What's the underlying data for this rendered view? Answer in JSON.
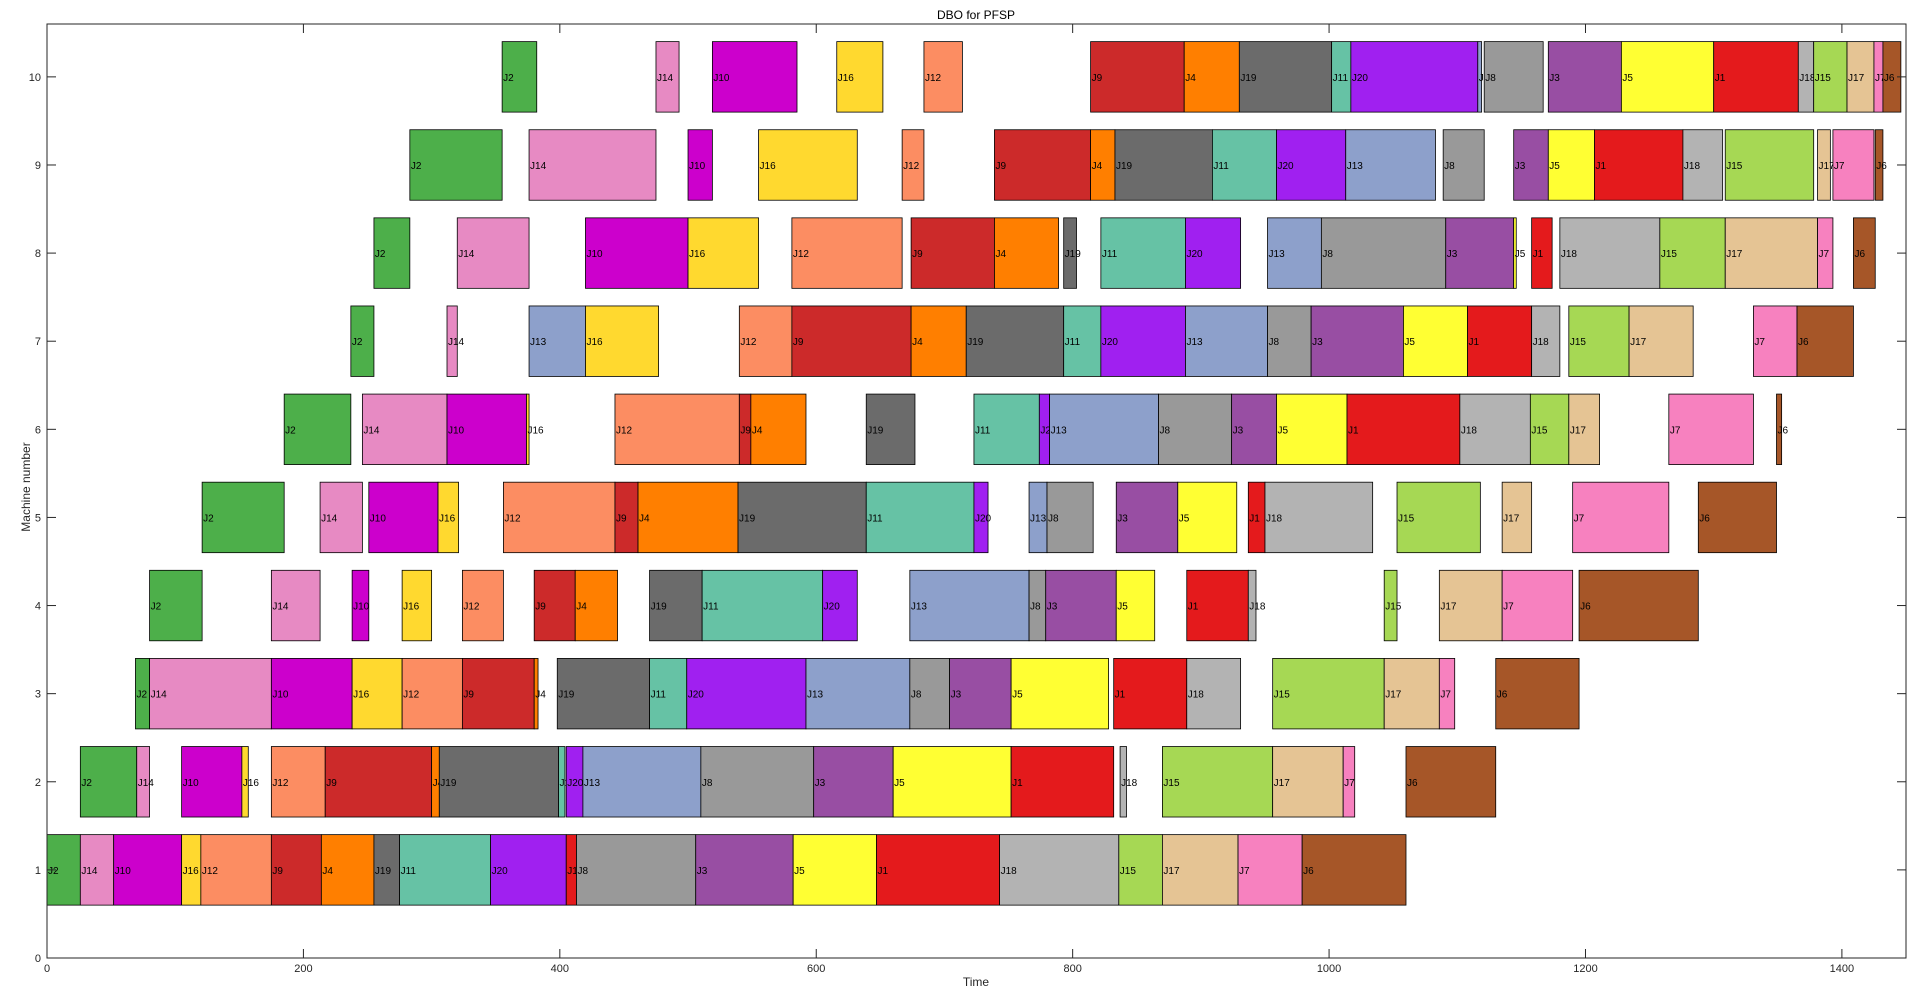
{
  "chart_data": {
    "type": "gantt",
    "title": "DBO for PFSP",
    "xlabel": "Time",
    "ylabel": "Machine number",
    "xlim": [
      0,
      1450
    ],
    "ylim": [
      0,
      10.6
    ],
    "x_ticks": [
      0,
      200,
      400,
      600,
      800,
      1000,
      1200,
      1400
    ],
    "y_ticks": [
      0,
      1,
      2,
      3,
      4,
      5,
      6,
      7,
      8,
      9,
      10
    ],
    "grid": false,
    "job_colors": {
      "J1": "#e41a1c",
      "J2": "#4daf4a",
      "J3": "#984ea3",
      "J4": "#ff7f00",
      "J5": "#ffff33",
      "J6": "#a65628",
      "J7": "#f781bf",
      "J8": "#999999",
      "J9": "#cc2a2a",
      "J10": "#cc00cc",
      "J11": "#66c2a5",
      "J12": "#fc8d62",
      "J13": "#8da0cb",
      "J14": "#e78ac3",
      "J15": "#a6d854",
      "J16": "#ffd92f",
      "J17": "#e5c494",
      "J18": "#b3b3b3",
      "J19": "#6b6b6b",
      "J20": "#a020f0"
    },
    "operations": [
      {
        "m": 1,
        "job": "J2",
        "s": 0,
        "e": 26
      },
      {
        "m": 1,
        "job": "J14",
        "s": 26,
        "e": 52
      },
      {
        "m": 1,
        "job": "J10",
        "s": 52,
        "e": 105
      },
      {
        "m": 1,
        "job": "J16",
        "s": 105,
        "e": 120
      },
      {
        "m": 1,
        "job": "J12",
        "s": 120,
        "e": 175
      },
      {
        "m": 1,
        "job": "J9",
        "s": 175,
        "e": 214
      },
      {
        "m": 1,
        "job": "J4",
        "s": 214,
        "e": 255
      },
      {
        "m": 1,
        "job": "J19",
        "s": 255,
        "e": 275
      },
      {
        "m": 1,
        "job": "J11",
        "s": 275,
        "e": 346
      },
      {
        "m": 1,
        "job": "J20",
        "s": 346,
        "e": 405
      },
      {
        "m": 1,
        "job": "J1",
        "s": 405,
        "e": 413
      },
      {
        "m": 1,
        "job": "J8",
        "s": 413,
        "e": 506
      },
      {
        "m": 1,
        "job": "J3",
        "s": 506,
        "e": 582
      },
      {
        "m": 1,
        "job": "J5",
        "s": 582,
        "e": 647
      },
      {
        "m": 1,
        "job": "J1",
        "s": 647,
        "e": 743
      },
      {
        "m": 1,
        "job": "J18",
        "s": 743,
        "e": 836
      },
      {
        "m": 1,
        "job": "J15",
        "s": 836,
        "e": 870
      },
      {
        "m": 1,
        "job": "J17",
        "s": 870,
        "e": 929
      },
      {
        "m": 1,
        "job": "J7",
        "s": 929,
        "e": 979
      },
      {
        "m": 1,
        "job": "J6",
        "s": 979,
        "e": 1060
      },
      {
        "m": 2,
        "job": "J2",
        "s": 26,
        "e": 70
      },
      {
        "m": 2,
        "job": "J14",
        "s": 70,
        "e": 80
      },
      {
        "m": 2,
        "job": "J10",
        "s": 105,
        "e": 152
      },
      {
        "m": 2,
        "job": "J16",
        "s": 152,
        "e": 157
      },
      {
        "m": 2,
        "job": "J12",
        "s": 175,
        "e": 217
      },
      {
        "m": 2,
        "job": "J9",
        "s": 217,
        "e": 300
      },
      {
        "m": 2,
        "job": "J4",
        "s": 300,
        "e": 306
      },
      {
        "m": 2,
        "job": "J19",
        "s": 306,
        "e": 399
      },
      {
        "m": 2,
        "job": "J11",
        "s": 399,
        "e": 404
      },
      {
        "m": 2,
        "job": "J20",
        "s": 405,
        "e": 418
      },
      {
        "m": 2,
        "job": "J13",
        "s": 418,
        "e": 510
      },
      {
        "m": 2,
        "job": "J8",
        "s": 510,
        "e": 598
      },
      {
        "m": 2,
        "job": "J3",
        "s": 598,
        "e": 660
      },
      {
        "m": 2,
        "job": "J5",
        "s": 660,
        "e": 752
      },
      {
        "m": 2,
        "job": "J1",
        "s": 752,
        "e": 832
      },
      {
        "m": 2,
        "job": "J18",
        "s": 837,
        "e": 842
      },
      {
        "m": 2,
        "job": "J15",
        "s": 870,
        "e": 956
      },
      {
        "m": 2,
        "job": "J17",
        "s": 956,
        "e": 1011
      },
      {
        "m": 2,
        "job": "J7",
        "s": 1011,
        "e": 1020
      },
      {
        "m": 2,
        "job": "J6",
        "s": 1060,
        "e": 1130
      },
      {
        "m": 3,
        "job": "J2",
        "s": 69,
        "e": 80
      },
      {
        "m": 3,
        "job": "J14",
        "s": 80,
        "e": 175
      },
      {
        "m": 3,
        "job": "J10",
        "s": 175,
        "e": 238
      },
      {
        "m": 3,
        "job": "J16",
        "s": 238,
        "e": 277
      },
      {
        "m": 3,
        "job": "J12",
        "s": 277,
        "e": 324
      },
      {
        "m": 3,
        "job": "J9",
        "s": 324,
        "e": 380
      },
      {
        "m": 3,
        "job": "J4",
        "s": 380,
        "e": 383
      },
      {
        "m": 3,
        "job": "J19",
        "s": 398,
        "e": 470
      },
      {
        "m": 3,
        "job": "J11",
        "s": 470,
        "e": 499
      },
      {
        "m": 3,
        "job": "J20",
        "s": 499,
        "e": 592
      },
      {
        "m": 3,
        "job": "J13",
        "s": 592,
        "e": 673
      },
      {
        "m": 3,
        "job": "J8",
        "s": 673,
        "e": 704
      },
      {
        "m": 3,
        "job": "J3",
        "s": 704,
        "e": 752
      },
      {
        "m": 3,
        "job": "J5",
        "s": 752,
        "e": 828
      },
      {
        "m": 3,
        "job": "J1",
        "s": 832,
        "e": 889
      },
      {
        "m": 3,
        "job": "J18",
        "s": 889,
        "e": 931
      },
      {
        "m": 3,
        "job": "J15",
        "s": 956,
        "e": 1043
      },
      {
        "m": 3,
        "job": "J17",
        "s": 1043,
        "e": 1086
      },
      {
        "m": 3,
        "job": "J7",
        "s": 1086,
        "e": 1098
      },
      {
        "m": 3,
        "job": "J6",
        "s": 1130,
        "e": 1195
      },
      {
        "m": 4,
        "job": "J2",
        "s": 80,
        "e": 121
      },
      {
        "m": 4,
        "job": "J14",
        "s": 175,
        "e": 213
      },
      {
        "m": 4,
        "job": "J10",
        "s": 238,
        "e": 251
      },
      {
        "m": 4,
        "job": "J16",
        "s": 277,
        "e": 300
      },
      {
        "m": 4,
        "job": "J12",
        "s": 324,
        "e": 356
      },
      {
        "m": 4,
        "job": "J9",
        "s": 380,
        "e": 412
      },
      {
        "m": 4,
        "job": "J4",
        "s": 412,
        "e": 445
      },
      {
        "m": 4,
        "job": "J19",
        "s": 470,
        "e": 511
      },
      {
        "m": 4,
        "job": "J11",
        "s": 511,
        "e": 605
      },
      {
        "m": 4,
        "job": "J20",
        "s": 605,
        "e": 632
      },
      {
        "m": 4,
        "job": "J13",
        "s": 673,
        "e": 766
      },
      {
        "m": 4,
        "job": "J8",
        "s": 766,
        "e": 779
      },
      {
        "m": 4,
        "job": "J3",
        "s": 779,
        "e": 834
      },
      {
        "m": 4,
        "job": "J5",
        "s": 834,
        "e": 864
      },
      {
        "m": 4,
        "job": "J1",
        "s": 889,
        "e": 937
      },
      {
        "m": 4,
        "job": "J18",
        "s": 937,
        "e": 943
      },
      {
        "m": 4,
        "job": "J15",
        "s": 1043,
        "e": 1053
      },
      {
        "m": 4,
        "job": "J17",
        "s": 1086,
        "e": 1135
      },
      {
        "m": 4,
        "job": "J7",
        "s": 1135,
        "e": 1190
      },
      {
        "m": 4,
        "job": "J6",
        "s": 1195,
        "e": 1288
      },
      {
        "m": 5,
        "job": "J2",
        "s": 121,
        "e": 185
      },
      {
        "m": 5,
        "job": "J14",
        "s": 213,
        "e": 246
      },
      {
        "m": 5,
        "job": "J10",
        "s": 251,
        "e": 305
      },
      {
        "m": 5,
        "job": "J16",
        "s": 305,
        "e": 321
      },
      {
        "m": 5,
        "job": "J12",
        "s": 356,
        "e": 443
      },
      {
        "m": 5,
        "job": "J9",
        "s": 443,
        "e": 461
      },
      {
        "m": 5,
        "job": "J4",
        "s": 461,
        "e": 539
      },
      {
        "m": 5,
        "job": "J19",
        "s": 539,
        "e": 639
      },
      {
        "m": 5,
        "job": "J11",
        "s": 639,
        "e": 723
      },
      {
        "m": 5,
        "job": "J20",
        "s": 723,
        "e": 734
      },
      {
        "m": 5,
        "job": "J13",
        "s": 766,
        "e": 780
      },
      {
        "m": 5,
        "job": "J8",
        "s": 780,
        "e": 816
      },
      {
        "m": 5,
        "job": "J3",
        "s": 834,
        "e": 882
      },
      {
        "m": 5,
        "job": "J5",
        "s": 882,
        "e": 928
      },
      {
        "m": 5,
        "job": "J1",
        "s": 937,
        "e": 950
      },
      {
        "m": 5,
        "job": "J18",
        "s": 950,
        "e": 1034
      },
      {
        "m": 5,
        "job": "J15",
        "s": 1053,
        "e": 1118
      },
      {
        "m": 5,
        "job": "J17",
        "s": 1135,
        "e": 1158
      },
      {
        "m": 5,
        "job": "J7",
        "s": 1190,
        "e": 1265
      },
      {
        "m": 5,
        "job": "J6",
        "s": 1288,
        "e": 1349
      },
      {
        "m": 6,
        "job": "J2",
        "s": 185,
        "e": 237
      },
      {
        "m": 6,
        "job": "J14",
        "s": 246,
        "e": 312
      },
      {
        "m": 6,
        "job": "J10",
        "s": 312,
        "e": 374
      },
      {
        "m": 6,
        "job": "J16",
        "s": 374,
        "e": 376
      },
      {
        "m": 6,
        "job": "J12",
        "s": 443,
        "e": 540
      },
      {
        "m": 6,
        "job": "J9",
        "s": 540,
        "e": 549
      },
      {
        "m": 6,
        "job": "J4",
        "s": 549,
        "e": 592
      },
      {
        "m": 6,
        "job": "J19",
        "s": 639,
        "e": 677
      },
      {
        "m": 6,
        "job": "J11",
        "s": 723,
        "e": 774
      },
      {
        "m": 6,
        "job": "J20",
        "s": 774,
        "e": 782
      },
      {
        "m": 6,
        "job": "J13",
        "s": 782,
        "e": 867
      },
      {
        "m": 6,
        "job": "J8",
        "s": 867,
        "e": 924
      },
      {
        "m": 6,
        "job": "J3",
        "s": 924,
        "e": 959
      },
      {
        "m": 6,
        "job": "J5",
        "s": 959,
        "e": 1014
      },
      {
        "m": 6,
        "job": "J1",
        "s": 1014,
        "e": 1102
      },
      {
        "m": 6,
        "job": "J18",
        "s": 1102,
        "e": 1157
      },
      {
        "m": 6,
        "job": "J15",
        "s": 1157,
        "e": 1187
      },
      {
        "m": 6,
        "job": "J17",
        "s": 1187,
        "e": 1211
      },
      {
        "m": 6,
        "job": "J7",
        "s": 1265,
        "e": 1331
      },
      {
        "m": 6,
        "job": "J6",
        "s": 1349,
        "e": 1353
      },
      {
        "m": 7,
        "job": "J2",
        "s": 237,
        "e": 255
      },
      {
        "m": 7,
        "job": "J14",
        "s": 312,
        "e": 320
      },
      {
        "m": 7,
        "job": "J13",
        "s": 376,
        "e": 420
      },
      {
        "m": 7,
        "job": "J16",
        "s": 420,
        "e": 477
      },
      {
        "m": 7,
        "job": "J12",
        "s": 540,
        "e": 581
      },
      {
        "m": 7,
        "job": "J9",
        "s": 581,
        "e": 674
      },
      {
        "m": 7,
        "job": "J4",
        "s": 674,
        "e": 717
      },
      {
        "m": 7,
        "job": "J19",
        "s": 717,
        "e": 793
      },
      {
        "m": 7,
        "job": "J11",
        "s": 793,
        "e": 822
      },
      {
        "m": 7,
        "job": "J20",
        "s": 822,
        "e": 888
      },
      {
        "m": 7,
        "job": "J13",
        "s": 888,
        "e": 952
      },
      {
        "m": 7,
        "job": "J8",
        "s": 952,
        "e": 986
      },
      {
        "m": 7,
        "job": "J3",
        "s": 986,
        "e": 1058
      },
      {
        "m": 7,
        "job": "J5",
        "s": 1058,
        "e": 1108
      },
      {
        "m": 7,
        "job": "J1",
        "s": 1108,
        "e": 1158
      },
      {
        "m": 7,
        "job": "J18",
        "s": 1158,
        "e": 1180
      },
      {
        "m": 7,
        "job": "J15",
        "s": 1187,
        "e": 1234
      },
      {
        "m": 7,
        "job": "J17",
        "s": 1234,
        "e": 1284
      },
      {
        "m": 7,
        "job": "J7",
        "s": 1331,
        "e": 1365
      },
      {
        "m": 7,
        "job": "J6",
        "s": 1365,
        "e": 1409
      },
      {
        "m": 8,
        "job": "J2",
        "s": 255,
        "e": 283
      },
      {
        "m": 8,
        "job": "J14",
        "s": 320,
        "e": 376
      },
      {
        "m": 8,
        "job": "J10",
        "s": 420,
        "e": 500
      },
      {
        "m": 8,
        "job": "J16",
        "s": 500,
        "e": 555
      },
      {
        "m": 8,
        "job": "J12",
        "s": 581,
        "e": 667
      },
      {
        "m": 8,
        "job": "J9",
        "s": 674,
        "e": 739
      },
      {
        "m": 8,
        "job": "J4",
        "s": 739,
        "e": 789
      },
      {
        "m": 8,
        "job": "J19",
        "s": 793,
        "e": 803
      },
      {
        "m": 8,
        "job": "J11",
        "s": 822,
        "e": 888
      },
      {
        "m": 8,
        "job": "J20",
        "s": 888,
        "e": 931
      },
      {
        "m": 8,
        "job": "J13",
        "s": 952,
        "e": 994
      },
      {
        "m": 8,
        "job": "J8",
        "s": 994,
        "e": 1091
      },
      {
        "m": 8,
        "job": "J3",
        "s": 1091,
        "e": 1144
      },
      {
        "m": 8,
        "job": "J5",
        "s": 1144,
        "e": 1146
      },
      {
        "m": 8,
        "job": "J1",
        "s": 1158,
        "e": 1174
      },
      {
        "m": 8,
        "job": "J18",
        "s": 1180,
        "e": 1258
      },
      {
        "m": 8,
        "job": "J15",
        "s": 1258,
        "e": 1309
      },
      {
        "m": 8,
        "job": "J17",
        "s": 1309,
        "e": 1381
      },
      {
        "m": 8,
        "job": "J7",
        "s": 1381,
        "e": 1393
      },
      {
        "m": 8,
        "job": "J6",
        "s": 1409,
        "e": 1426
      },
      {
        "m": 9,
        "job": "J2",
        "s": 283,
        "e": 355
      },
      {
        "m": 9,
        "job": "J14",
        "s": 376,
        "e": 475
      },
      {
        "m": 9,
        "job": "J10",
        "s": 500,
        "e": 519
      },
      {
        "m": 9,
        "job": "J16",
        "s": 555,
        "e": 632
      },
      {
        "m": 9,
        "job": "J12",
        "s": 667,
        "e": 684
      },
      {
        "m": 9,
        "job": "J9",
        "s": 739,
        "e": 814
      },
      {
        "m": 9,
        "job": "J4",
        "s": 814,
        "e": 833
      },
      {
        "m": 9,
        "job": "J19",
        "s": 833,
        "e": 909
      },
      {
        "m": 9,
        "job": "J11",
        "s": 909,
        "e": 959
      },
      {
        "m": 9,
        "job": "J20",
        "s": 959,
        "e": 1013
      },
      {
        "m": 9,
        "job": "J13",
        "s": 1013,
        "e": 1083
      },
      {
        "m": 9,
        "job": "J8",
        "s": 1089,
        "e": 1121
      },
      {
        "m": 9,
        "job": "J3",
        "s": 1144,
        "e": 1171
      },
      {
        "m": 9,
        "job": "J5",
        "s": 1171,
        "e": 1207
      },
      {
        "m": 9,
        "job": "J1",
        "s": 1207,
        "e": 1276
      },
      {
        "m": 9,
        "job": "J18",
        "s": 1276,
        "e": 1307
      },
      {
        "m": 9,
        "job": "J15",
        "s": 1309,
        "e": 1378
      },
      {
        "m": 9,
        "job": "J17",
        "s": 1381,
        "e": 1391
      },
      {
        "m": 9,
        "job": "J7",
        "s": 1393,
        "e": 1425
      },
      {
        "m": 9,
        "job": "J6",
        "s": 1426,
        "e": 1432
      },
      {
        "m": 10,
        "job": "J2",
        "s": 355,
        "e": 382
      },
      {
        "m": 10,
        "job": "J14",
        "s": 475,
        "e": 493
      },
      {
        "m": 10,
        "job": "J10",
        "s": 519,
        "e": 585
      },
      {
        "m": 10,
        "job": "J16",
        "s": 616,
        "e": 652
      },
      {
        "m": 10,
        "job": "J12",
        "s": 684,
        "e": 714
      },
      {
        "m": 10,
        "job": "J9",
        "s": 814,
        "e": 887
      },
      {
        "m": 10,
        "job": "J4",
        "s": 887,
        "e": 930
      },
      {
        "m": 10,
        "job": "J19",
        "s": 930,
        "e": 1002
      },
      {
        "m": 10,
        "job": "J11",
        "s": 1002,
        "e": 1017
      },
      {
        "m": 10,
        "job": "J20",
        "s": 1017,
        "e": 1116
      },
      {
        "m": 10,
        "job": "J13",
        "s": 1116,
        "e": 1119
      },
      {
        "m": 10,
        "job": "J8",
        "s": 1121,
        "e": 1167
      },
      {
        "m": 10,
        "job": "J3",
        "s": 1171,
        "e": 1228
      },
      {
        "m": 10,
        "job": "J5",
        "s": 1228,
        "e": 1300
      },
      {
        "m": 10,
        "job": "J1",
        "s": 1300,
        "e": 1366
      },
      {
        "m": 10,
        "job": "J18",
        "s": 1366,
        "e": 1378
      },
      {
        "m": 10,
        "job": "J15",
        "s": 1378,
        "e": 1404
      },
      {
        "m": 10,
        "job": "J17",
        "s": 1404,
        "e": 1425
      },
      {
        "m": 10,
        "job": "J7",
        "s": 1425,
        "e": 1432
      },
      {
        "m": 10,
        "job": "J6",
        "s": 1432,
        "e": 1446
      }
    ]
  }
}
